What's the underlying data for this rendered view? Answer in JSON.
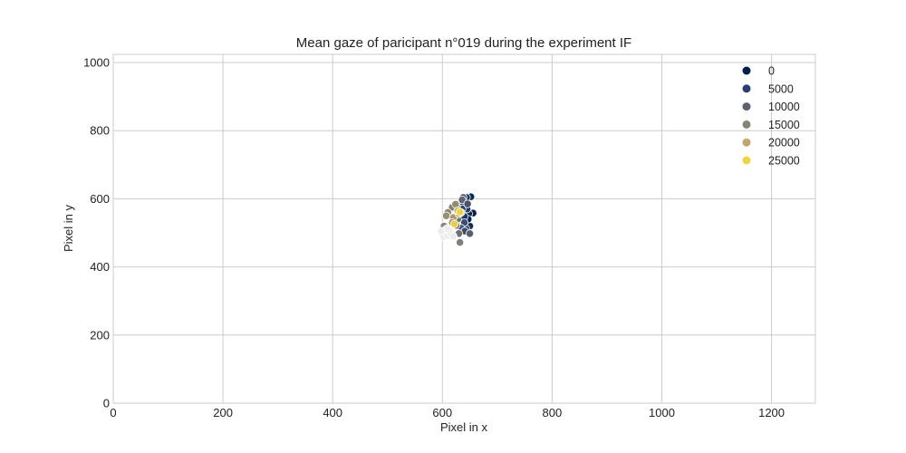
{
  "chart_data": {
    "type": "scatter",
    "title": "Mean gaze of paricipant n°019 during the experiment IF",
    "xlabel": "Pixel in x",
    "ylabel": "Pixel in y",
    "xlim": [
      0,
      1280
    ],
    "ylim": [
      0,
      1024
    ],
    "xticks": [
      0,
      200,
      400,
      600,
      800,
      1000,
      1200
    ],
    "yticks": [
      0,
      200,
      400,
      600,
      800,
      1000
    ],
    "grid": true,
    "legend_position": "top-right",
    "colormap": "cividis",
    "legend": [
      {
        "label": "0",
        "color": "#00204c"
      },
      {
        "label": "5000",
        "color": "#2a3f6d"
      },
      {
        "label": "10000",
        "color": "#5d6170"
      },
      {
        "label": "15000",
        "color": "#868475"
      },
      {
        "label": "20000",
        "color": "#bda96b"
      },
      {
        "label": "25000",
        "color": "#f0d33e"
      }
    ],
    "points": [
      {
        "x": 652,
        "y": 606,
        "c": 1500
      },
      {
        "x": 644,
        "y": 604,
        "c": 2500
      },
      {
        "x": 656,
        "y": 558,
        "c": 800
      },
      {
        "x": 648,
        "y": 556,
        "c": 1200
      },
      {
        "x": 650,
        "y": 520,
        "c": 2200
      },
      {
        "x": 643,
        "y": 512,
        "c": 3000
      },
      {
        "x": 647,
        "y": 540,
        "c": 500
      },
      {
        "x": 640,
        "y": 548,
        "c": 3500
      },
      {
        "x": 645,
        "y": 570,
        "c": 4000
      },
      {
        "x": 638,
        "y": 586,
        "c": 6000
      },
      {
        "x": 636,
        "y": 570,
        "c": 5200
      },
      {
        "x": 640,
        "y": 530,
        "c": 7000
      },
      {
        "x": 634,
        "y": 514,
        "c": 8200
      },
      {
        "x": 641,
        "y": 505,
        "c": 6800
      },
      {
        "x": 638,
        "y": 604,
        "c": 9000
      },
      {
        "x": 636,
        "y": 597,
        "c": 10500
      },
      {
        "x": 632,
        "y": 560,
        "c": 11500
      },
      {
        "x": 628,
        "y": 540,
        "c": 12000
      },
      {
        "x": 625,
        "y": 522,
        "c": 10800
      },
      {
        "x": 630,
        "y": 498,
        "c": 11800
      },
      {
        "x": 632,
        "y": 472,
        "c": 14500
      },
      {
        "x": 626,
        "y": 578,
        "c": 13500
      },
      {
        "x": 618,
        "y": 575,
        "c": 14200
      },
      {
        "x": 624,
        "y": 584,
        "c": 16000
      },
      {
        "x": 610,
        "y": 560,
        "c": 15800
      },
      {
        "x": 607,
        "y": 550,
        "c": 16500
      },
      {
        "x": 612,
        "y": 505,
        "c": 17000
      },
      {
        "x": 603,
        "y": 520,
        "c": 15500
      },
      {
        "x": 620,
        "y": 545,
        "c": 18000
      },
      {
        "x": 618,
        "y": 530,
        "c": 17500
      },
      {
        "x": 630,
        "y": 556,
        "c": 19500
      },
      {
        "x": 634,
        "y": 560,
        "c": 20500
      },
      {
        "x": 628,
        "y": 565,
        "c": 21500
      },
      {
        "x": 622,
        "y": 526,
        "c": 24500
      },
      {
        "x": 632,
        "y": 561,
        "c": 25500
      },
      {
        "x": 600,
        "y": 495,
        "c": 26000
      },
      {
        "x": 605,
        "y": 500,
        "c": 26500
      },
      {
        "x": 602,
        "y": 488,
        "c": 27000
      },
      {
        "x": 610,
        "y": 492,
        "c": 27500
      },
      {
        "x": 615,
        "y": 498,
        "c": 27000
      },
      {
        "x": 608,
        "y": 512,
        "c": 26800
      },
      {
        "x": 598,
        "y": 505,
        "c": 27200
      },
      {
        "x": 620,
        "y": 490,
        "c": 26200
      },
      {
        "x": 650,
        "y": 498,
        "c": 9500
      },
      {
        "x": 646,
        "y": 585,
        "c": 8000
      }
    ]
  }
}
